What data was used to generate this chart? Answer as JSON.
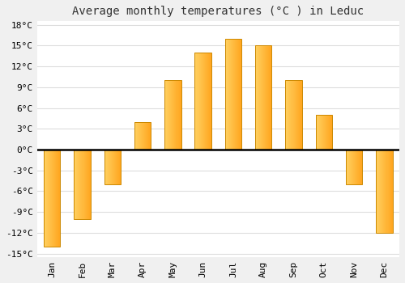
{
  "title": "Average monthly temperatures (°C ) in Leduc",
  "months": [
    "Jan",
    "Feb",
    "Mar",
    "Apr",
    "May",
    "Jun",
    "Jul",
    "Aug",
    "Sep",
    "Oct",
    "Nov",
    "Dec"
  ],
  "values": [
    -14,
    -10,
    -5,
    4,
    10,
    14,
    16,
    15,
    10,
    5,
    -5,
    -12
  ],
  "bar_color": "#FFA620",
  "bar_color_light": "#FFD060",
  "bar_edge_color": "#CC8800",
  "ylim": [
    -15,
    18
  ],
  "yticks": [
    -15,
    -12,
    -9,
    -6,
    -3,
    0,
    3,
    6,
    9,
    12,
    15,
    18
  ],
  "plot_bg_color": "#ffffff",
  "fig_bg_color": "#f0f0f0",
  "grid_color": "#dddddd",
  "zero_line_color": "#000000",
  "title_fontsize": 10,
  "tick_fontsize": 8,
  "bar_width": 0.55
}
